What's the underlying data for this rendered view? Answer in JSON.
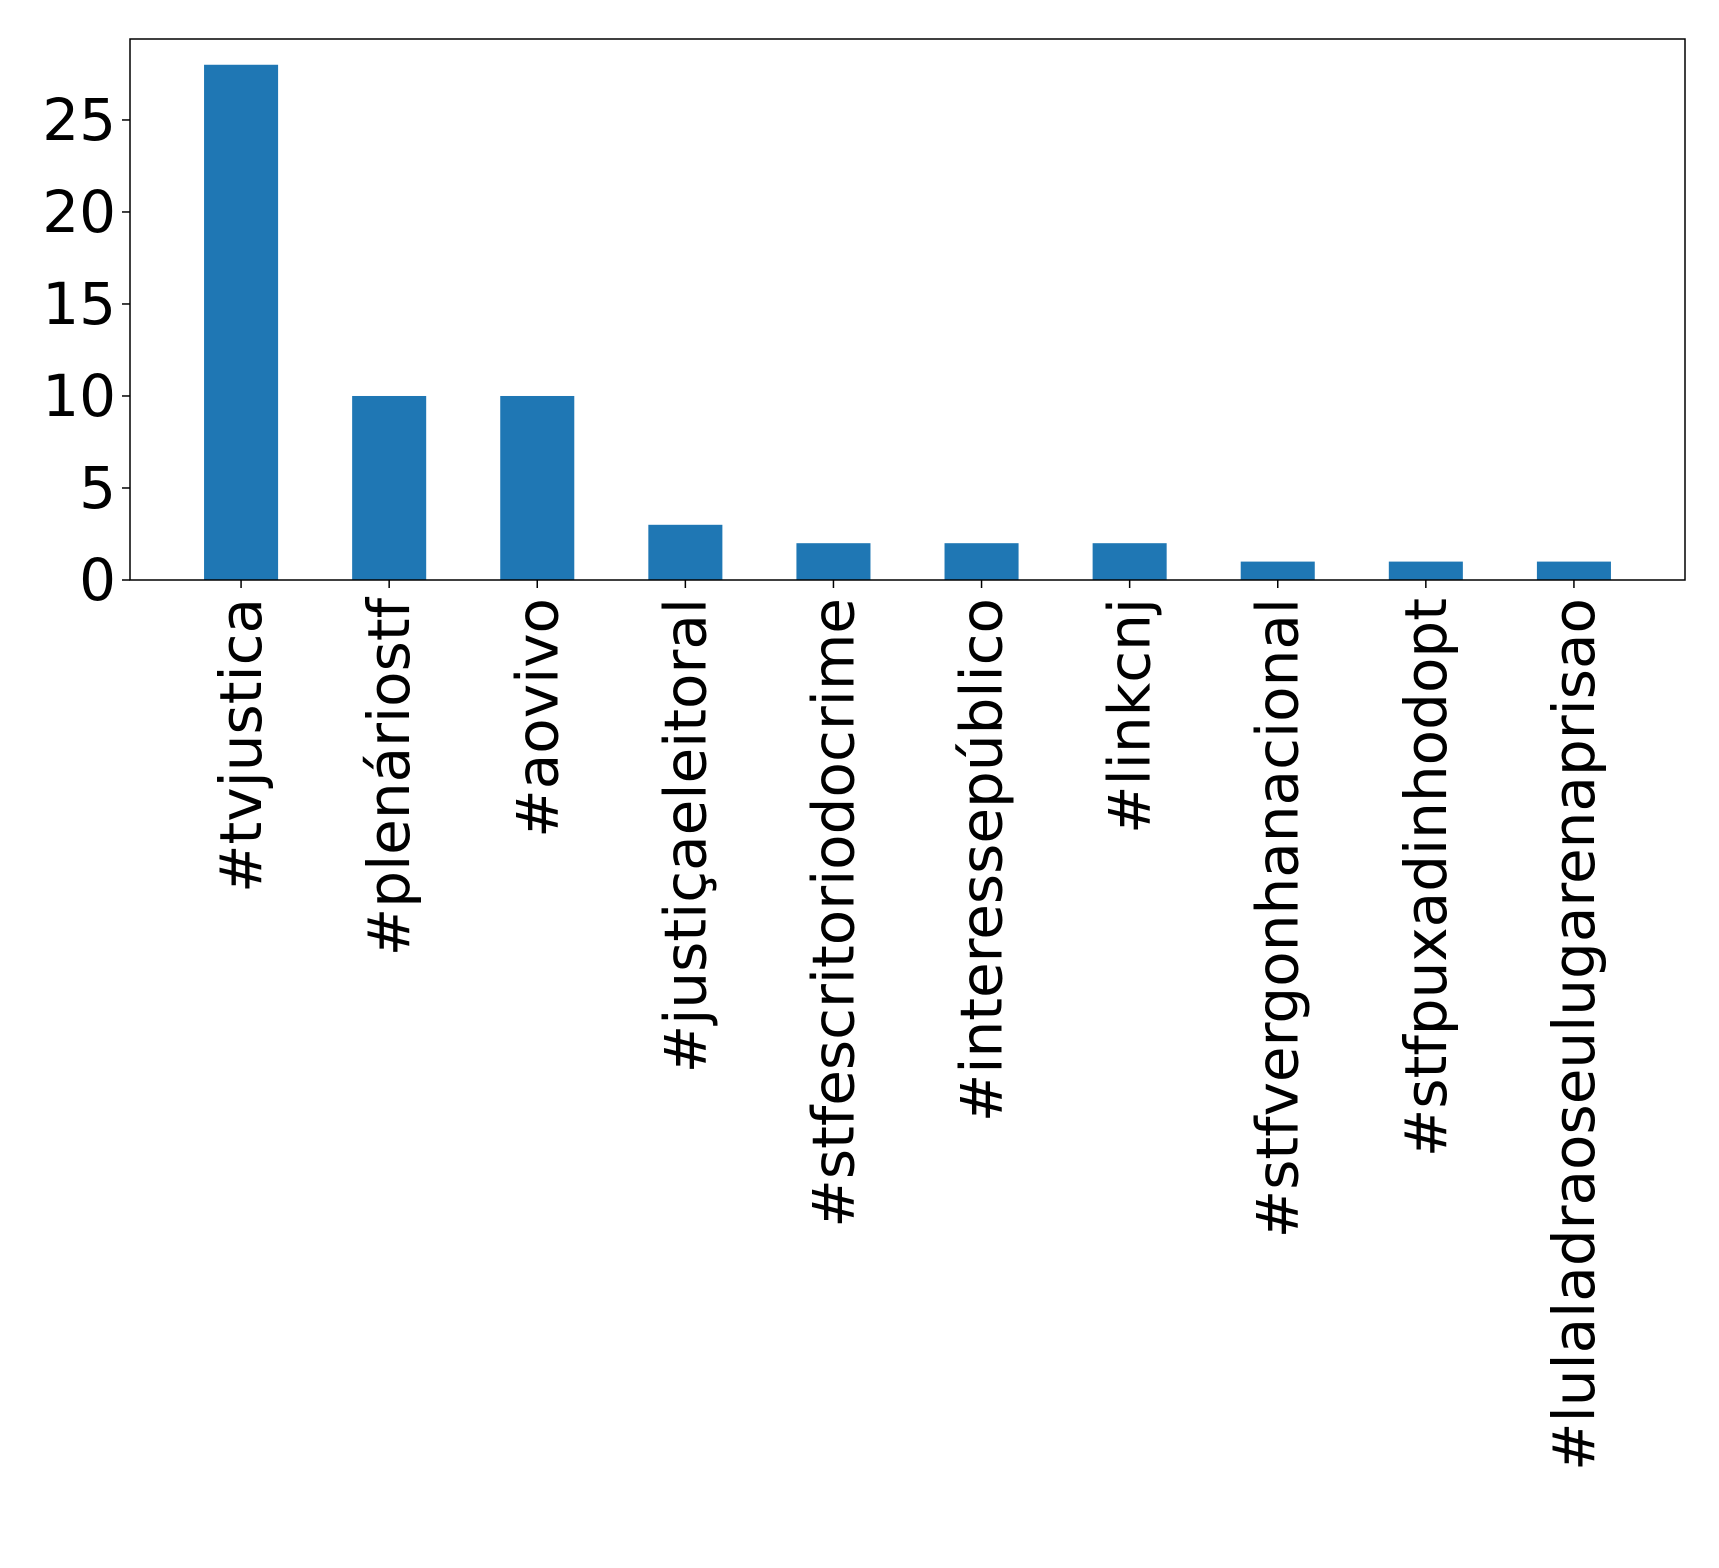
{
  "chart_data": {
    "type": "bar",
    "title": "",
    "xlabel": "",
    "ylabel": "",
    "categories": [
      "#tvjustica",
      "#plenáriostf",
      "#aovivo",
      "#justiçaeleitoral",
      "#stfescritoriodocrime",
      "#interessepúblico",
      "#linkcnj",
      "#stfvergonhanacional",
      "#stfpuxadinhodopt",
      "#lulaladraoseulugarenaprisao"
    ],
    "values": [
      28,
      10,
      10,
      3,
      2,
      2,
      2,
      1,
      1,
      1
    ],
    "ylim": [
      0,
      29.4
    ],
    "yticks": [
      0,
      5,
      10,
      15,
      20,
      25
    ],
    "ytick_labels": [
      "0",
      "5",
      "10",
      "15",
      "20",
      "25"
    ],
    "grid": false,
    "bar_color": "#1f77b4"
  }
}
